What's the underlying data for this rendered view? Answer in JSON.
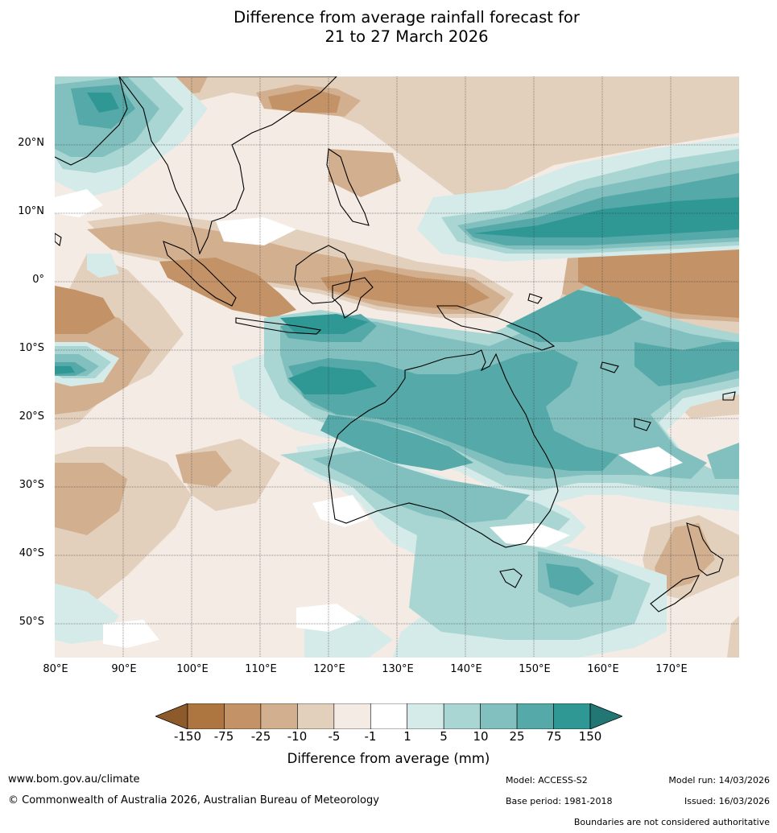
{
  "title": {
    "line1": "Difference from average rainfall forecast for",
    "line2": "21 to 27 March 2026"
  },
  "map": {
    "lat_labels": [
      "20°N",
      "10°N",
      "0°",
      "10°S",
      "20°S",
      "30°S",
      "40°S",
      "50°S"
    ],
    "lon_labels": [
      "80°E",
      "90°E",
      "100°E",
      "110°E",
      "120°E",
      "130°E",
      "140°E",
      "150°E",
      "160°E",
      "170°E"
    ]
  },
  "colorbar": {
    "ticks": [
      "-150",
      "-75",
      "-25",
      "-10",
      "-5",
      "-1",
      "1",
      "5",
      "10",
      "25",
      "75",
      "150"
    ],
    "colors": [
      "#ad7641",
      "#c39266",
      "#d2b08f",
      "#e3d0bc",
      "#f3ebe4",
      "#ffffff",
      "#d5ebe9",
      "#a9d5d3",
      "#81c0be",
      "#55a9a8",
      "#2f9894"
    ],
    "extend_low_color": "#8c5a2b",
    "extend_high_color": "#227775",
    "label": "Difference from average (mm)"
  },
  "footer": {
    "url": "www.bom.gov.au/climate",
    "copyright": "© Commonwealth of Australia 2026, Australian Bureau of Meteorology",
    "model": "Model: ACCESS-S2",
    "model_run": "Model run: 14/03/2026",
    "base_period": "Base period: 1981-2018",
    "issued": "Issued: 16/03/2026",
    "disclaimer": "Boundaries are not considered authoritative"
  }
}
